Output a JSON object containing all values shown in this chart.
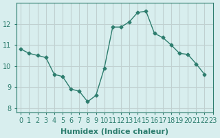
{
  "x": [
    0,
    1,
    2,
    3,
    4,
    5,
    6,
    7,
    8,
    9,
    10,
    11,
    12,
    13,
    14,
    15,
    16,
    17,
    18,
    19,
    20,
    21,
    22
  ],
  "y": [
    10.8,
    10.6,
    10.5,
    10.4,
    9.6,
    9.5,
    8.9,
    8.8,
    8.3,
    8.6,
    9.9,
    11.85,
    11.85,
    12.1,
    12.55,
    12.6,
    11.55,
    11.35,
    11.0,
    10.6,
    10.55,
    10.1,
    9.6
  ],
  "xlabel": "Humidex (Indice chaleur)",
  "xlim": [
    -0.5,
    23.0
  ],
  "ylim": [
    7.8,
    13.0
  ],
  "yticks": [
    8,
    9,
    10,
    11,
    12
  ],
  "xticks": [
    0,
    1,
    2,
    3,
    4,
    5,
    6,
    7,
    8,
    9,
    10,
    11,
    12,
    13,
    14,
    15,
    16,
    17,
    18,
    19,
    20,
    21,
    22,
    23
  ],
  "line_color": "#2d7d6e",
  "marker": "D",
  "marker_size": 2.5,
  "bg_color": "#d8eeee",
  "grid_color": "#c0d0d0",
  "tick_color": "#2d7d6e",
  "label_color": "#2d7d6e",
  "xlabel_fontsize": 8,
  "tick_fontsize": 7
}
